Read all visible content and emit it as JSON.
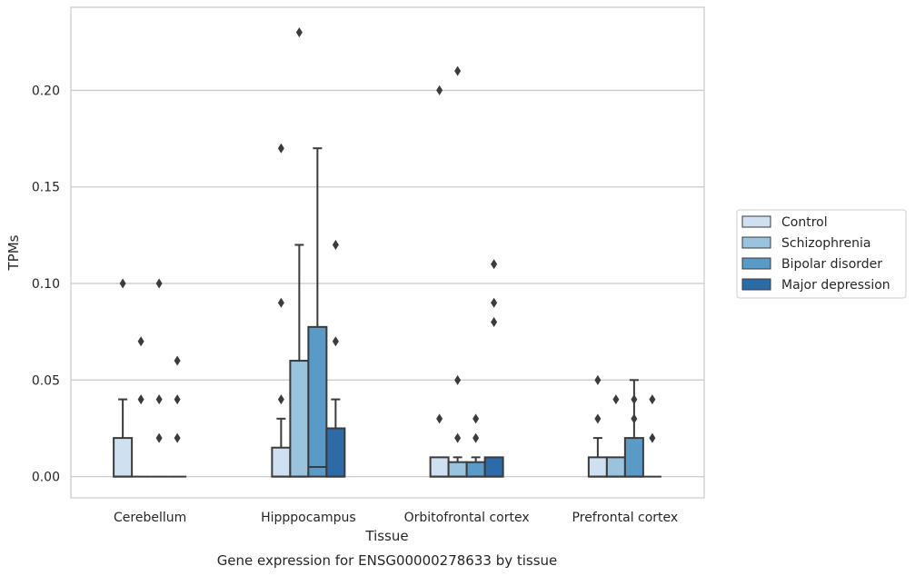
{
  "chart_data": {
    "type": "box",
    "xlabel": "Tissue",
    "ylabel": "TPMs",
    "caption": "Gene expression for ENSG00000278633 by tissue",
    "ylim": [
      -0.011,
      0.243
    ],
    "yticks": [
      "0.00",
      "0.05",
      "0.10",
      "0.15",
      "0.20"
    ],
    "grid": "horizontal",
    "legend_position": "right",
    "categories": [
      "Cerebellum",
      "Hipppocampus",
      "Orbitofrontal cortex",
      "Prefrontal cortex"
    ],
    "series": [
      {
        "name": "Control",
        "color": "#cfe0f0",
        "boxes": [
          {
            "q1": 0.0,
            "median": 0.0,
            "q3": 0.02,
            "whislo": 0.0,
            "whishi": 0.04,
            "fliers": [
              0.1
            ]
          },
          {
            "q1": 0.0,
            "median": 0.0,
            "q3": 0.015,
            "whislo": 0.0,
            "whishi": 0.03,
            "fliers": [
              0.04,
              0.09,
              0.17
            ]
          },
          {
            "q1": 0.0,
            "median": 0.0,
            "q3": 0.01,
            "whislo": 0.0,
            "whishi": 0.01,
            "fliers": [
              0.03,
              0.2
            ]
          },
          {
            "q1": 0.0,
            "median": 0.0,
            "q3": 0.01,
            "whislo": 0.0,
            "whishi": 0.02,
            "fliers": [
              0.03,
              0.05
            ]
          }
        ]
      },
      {
        "name": "Schizophrenia",
        "color": "#9ac3dd",
        "boxes": [
          {
            "q1": 0.0,
            "median": 0.0,
            "q3": 0.0,
            "whislo": 0.0,
            "whishi": 0.0,
            "fliers": [
              0.04,
              0.07
            ]
          },
          {
            "q1": 0.0,
            "median": 0.0,
            "q3": 0.06,
            "whislo": 0.0,
            "whishi": 0.12,
            "fliers": [
              0.23
            ]
          },
          {
            "q1": 0.0,
            "median": 0.0,
            "q3": 0.0075,
            "whislo": 0.0,
            "whishi": 0.01,
            "fliers": [
              0.02,
              0.05,
              0.21
            ]
          },
          {
            "q1": 0.0,
            "median": 0.0,
            "q3": 0.01,
            "whislo": 0.0,
            "whishi": 0.01,
            "fliers": [
              0.04
            ]
          }
        ]
      },
      {
        "name": "Bipolar disorder",
        "color": "#5a9ac6",
        "boxes": [
          {
            "q1": 0.0,
            "median": 0.0,
            "q3": 0.0,
            "whislo": 0.0,
            "whishi": 0.0,
            "fliers": [
              0.02,
              0.04,
              0.1
            ]
          },
          {
            "q1": 0.0,
            "median": 0.005,
            "q3": 0.0775,
            "whislo": 0.0,
            "whishi": 0.17,
            "fliers": []
          },
          {
            "q1": 0.0,
            "median": 0.0,
            "q3": 0.0075,
            "whislo": 0.0,
            "whishi": 0.01,
            "fliers": [
              0.02,
              0.03
            ]
          },
          {
            "q1": 0.0,
            "median": 0.0,
            "q3": 0.02,
            "whislo": 0.0,
            "whishi": 0.05,
            "fliers": [
              0.03,
              0.04
            ]
          }
        ]
      },
      {
        "name": "Major depression",
        "color": "#2c6aa8",
        "boxes": [
          {
            "q1": 0.0,
            "median": 0.0,
            "q3": 0.0,
            "whislo": 0.0,
            "whishi": 0.0,
            "fliers": [
              0.02,
              0.04,
              0.06
            ]
          },
          {
            "q1": 0.0,
            "median": 0.0,
            "q3": 0.025,
            "whislo": 0.0,
            "whishi": 0.04,
            "fliers": [
              0.07,
              0.12
            ]
          },
          {
            "q1": 0.0,
            "median": 0.0,
            "q3": 0.01,
            "whislo": 0.0,
            "whishi": 0.01,
            "fliers": [
              0.08,
              0.09,
              0.11
            ]
          },
          {
            "q1": 0.0,
            "median": 0.0,
            "q3": 0.0,
            "whislo": 0.0,
            "whishi": 0.0,
            "fliers": [
              0.02,
              0.04
            ]
          }
        ]
      }
    ]
  }
}
